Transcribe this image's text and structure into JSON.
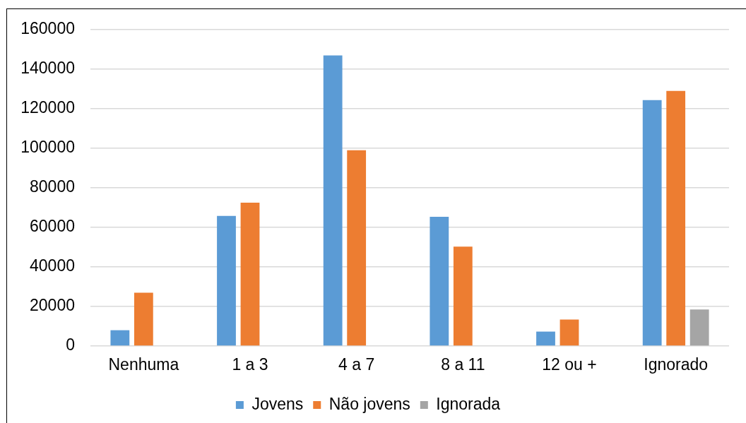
{
  "chart_data": {
    "type": "bar",
    "categories": [
      "Nenhuma",
      "1 a 3",
      "4 a 7",
      "8 a 11",
      "12 ou +",
      "Ignorado"
    ],
    "series": [
      {
        "name": "Jovens",
        "color": "#5b9bd5",
        "values": [
          8000,
          65800,
          147000,
          65400,
          7300,
          124400
        ]
      },
      {
        "name": "Não jovens",
        "color": "#ed7d31",
        "values": [
          27000,
          72500,
          99000,
          50300,
          13400,
          129000
        ]
      },
      {
        "name": "Ignorada",
        "color": "#a5a5a5",
        "values": [
          null,
          null,
          null,
          null,
          null,
          18500
        ]
      }
    ],
    "ylim": [
      0,
      160000
    ],
    "yticks": [
      0,
      20000,
      40000,
      60000,
      80000,
      100000,
      120000,
      140000,
      160000
    ],
    "grid": "y",
    "legend": "bottom"
  }
}
